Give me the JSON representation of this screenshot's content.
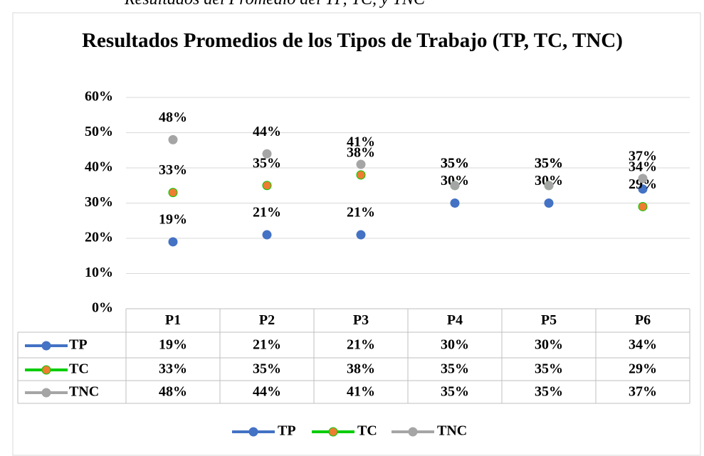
{
  "caption": "Resultados del Promedio del TP, TC, y TNC",
  "chart_data": {
    "type": "line",
    "title": "Resultados Promedios de los Tipos de Trabajo (TP, TC, TNC)",
    "categories": [
      "P1",
      "P2",
      "P3",
      "P4",
      "P5",
      "P6"
    ],
    "series": [
      {
        "name": "TP",
        "color": "#4472c4",
        "marker_color": "#4472c4",
        "values": [
          19,
          21,
          21,
          30,
          30,
          34
        ],
        "value_labels": [
          "19%",
          "21%",
          "21%",
          "30%",
          "30%",
          "34%"
        ]
      },
      {
        "name": "TC",
        "color": "#00cc00",
        "marker_color": "#ed7d31",
        "values": [
          33,
          35,
          38,
          35,
          35,
          29
        ],
        "value_labels": [
          "33%",
          "35%",
          "38%",
          "35%",
          "35%",
          "29%"
        ]
      },
      {
        "name": "TNC",
        "color": "#a5a5a5",
        "marker_color": "#a5a5a5",
        "values": [
          48,
          44,
          41,
          35,
          35,
          37
        ],
        "value_labels": [
          "48%",
          "44%",
          "41%",
          "35%",
          "35%",
          "37%"
        ]
      }
    ],
    "ylim": [
      0,
      60
    ],
    "yticks": [
      {
        "value": 0,
        "label": "0%"
      },
      {
        "value": 10,
        "label": "10%"
      },
      {
        "value": 20,
        "label": "20%"
      },
      {
        "value": 30,
        "label": "30%"
      },
      {
        "value": 40,
        "label": "40%"
      },
      {
        "value": 50,
        "label": "50%"
      },
      {
        "value": 60,
        "label": "60%"
      }
    ],
    "grid": true,
    "legend": "bottom"
  }
}
